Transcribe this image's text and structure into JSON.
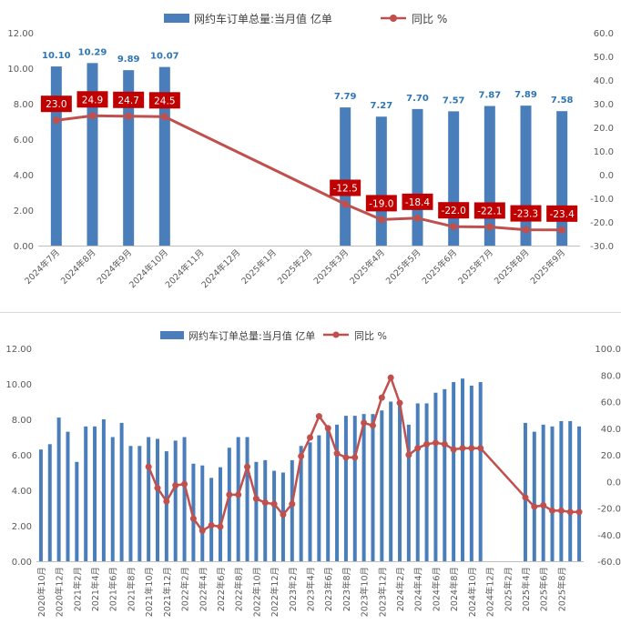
{
  "colors": {
    "bar": "#4a7ebb",
    "line": "#c0504d",
    "label_bg": "#c00000",
    "bar_label": "#2e75b6",
    "divider": "#d9d9d9"
  },
  "chart_data": [
    {
      "type": "bar+line",
      "legend": {
        "bar": "网约车订单总量:当月值 亿单",
        "line": "同比 %"
      },
      "categories": [
        "2024年7月",
        "2024年8月",
        "2024年9月",
        "2024年10月",
        "2024年11月",
        "2024年12月",
        "2025年1月",
        "2025年2月",
        "2025年3月",
        "2025年4月",
        "2025年5月",
        "2025年6月",
        "2025年7月",
        "2025年8月",
        "2025年9月"
      ],
      "bar_values": [
        10.1,
        10.29,
        9.89,
        10.07,
        null,
        null,
        null,
        null,
        7.79,
        7.27,
        7.7,
        7.57,
        7.87,
        7.89,
        7.58
      ],
      "bar_labels": [
        "10.10",
        "10.29",
        "9.89",
        "10.07",
        "",
        "",
        "",
        "",
        "7.79",
        "7.27",
        "7.70",
        "7.57",
        "7.87",
        "7.89",
        "7.58"
      ],
      "line_values": [
        23.0,
        24.9,
        24.7,
        24.5,
        null,
        null,
        null,
        null,
        -12.5,
        -19.0,
        -18.4,
        -22.0,
        -22.1,
        -23.3,
        -23.4
      ],
      "line_labels": [
        "23.0",
        "24.9",
        "24.7",
        "24.5",
        "",
        "",
        "",
        "",
        "-12.5",
        "-19.0",
        "-18.4",
        "-22.0",
        "-22.1",
        "-23.3",
        "-23.4"
      ],
      "y_left": {
        "min": 0,
        "max": 12,
        "ticks": [
          "0.00",
          "2.00",
          "4.00",
          "6.00",
          "8.00",
          "10.00",
          "12.00"
        ]
      },
      "y_right": {
        "min": -30,
        "max": 60,
        "ticks": [
          "-30.0",
          "-20.0",
          "-10.0",
          "0.0",
          "10.0",
          "20.0",
          "30.0",
          "40.0",
          "50.0",
          "60.0"
        ]
      }
    },
    {
      "type": "bar+line",
      "legend": {
        "bar": "网约车订单总量:当月值 亿单",
        "line": "同比 %"
      },
      "x_tick_labels": [
        "2020年10月",
        "2020年12月",
        "2021年2月",
        "2021年4月",
        "2021年6月",
        "2021年8月",
        "2021年10月",
        "2021年12月",
        "2022年2月",
        "2022年4月",
        "2022年6月",
        "2022年8月",
        "2022年10月",
        "2022年12月",
        "2023年2月",
        "2023年4月",
        "2023年6月",
        "2023年8月",
        "2023年10月",
        "2023年12月",
        "2024年2月",
        "2024年4月",
        "2024年6月",
        "2024年8月",
        "2024年10月",
        "2024年12月",
        "2025年2月",
        "2025年4月",
        "2025年6月",
        "2025年8月"
      ],
      "bar_values": [
        6.3,
        6.6,
        8.1,
        7.3,
        5.6,
        7.6,
        7.6,
        8.0,
        7.0,
        7.8,
        6.5,
        6.5,
        7.0,
        6.9,
        6.2,
        6.8,
        7.0,
        5.5,
        5.4,
        4.7,
        5.3,
        6.4,
        7.0,
        7.0,
        5.6,
        5.7,
        5.1,
        5.0,
        5.7,
        6.5,
        6.7,
        7.1,
        7.5,
        7.7,
        8.2,
        8.2,
        8.3,
        8.3,
        8.5,
        9.0,
        8.9,
        7.7,
        8.9,
        8.9,
        9.5,
        9.7,
        10.1,
        10.3,
        9.9,
        10.1,
        null,
        null,
        null,
        null,
        7.8,
        7.3,
        7.7,
        7.6,
        7.9,
        7.9,
        7.6
      ],
      "line_values": [
        null,
        null,
        null,
        null,
        null,
        null,
        null,
        null,
        null,
        null,
        null,
        null,
        11,
        -5,
        -15,
        -3,
        -2,
        -28,
        -37,
        -33,
        -34,
        -10,
        -10,
        11,
        -13,
        -16,
        -17,
        -25,
        -17,
        19,
        33,
        49,
        40,
        21,
        18,
        18,
        44,
        42,
        63,
        78,
        59,
        20,
        25,
        28,
        29,
        28,
        24,
        25,
        25,
        25,
        null,
        null,
        null,
        null,
        -12,
        -19,
        -18,
        -22,
        -22,
        -23,
        -23
      ],
      "y_left": {
        "min": 0,
        "max": 12,
        "ticks": [
          "0.00",
          "2.00",
          "4.00",
          "6.00",
          "8.00",
          "10.00",
          "12.00"
        ]
      },
      "y_right": {
        "min": -60,
        "max": 100,
        "ticks": [
          "-60.0",
          "-40.0",
          "-20.0",
          "0.0",
          "20.0",
          "40.0",
          "60.0",
          "80.0",
          "100.0"
        ]
      }
    }
  ]
}
